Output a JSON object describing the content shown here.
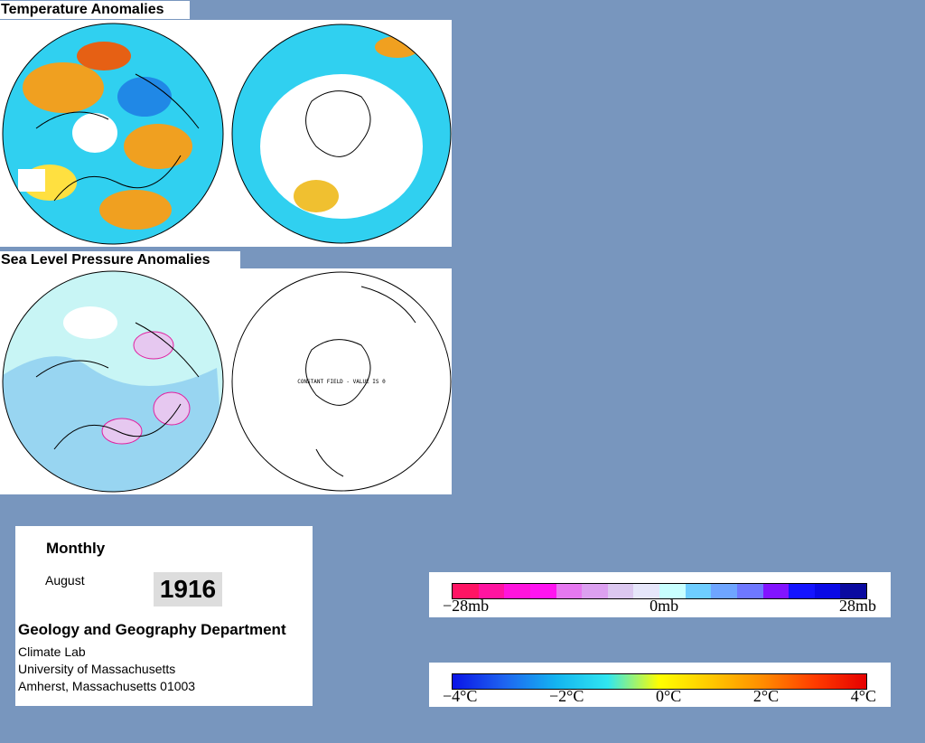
{
  "temperature": {
    "title": "Temperature Anomalies",
    "scale_labels": [
      "−4°C",
      "−2°C",
      "0°C",
      "2°C",
      "4°C"
    ],
    "scale_colors": [
      "#0a14e6",
      "#1e64f0",
      "#14b4f0",
      "#30e6f0",
      "#ffff00",
      "#ffc800",
      "#ff8c00",
      "#ff3c00",
      "#e60000"
    ]
  },
  "pressure": {
    "title": "Sea Level Pressure Anomalies",
    "south_note": "CONSTANT FIELD - VALUE IS 0",
    "scale_labels": [
      "−28mb",
      "0mb",
      "28mb"
    ],
    "scale_colors": [
      "#ff1464",
      "#ff14a0",
      "#ff14dc",
      "#ff14f0",
      "#e678f0",
      "#dca0f0",
      "#dcc8f0",
      "#e6e6fa",
      "#c8ffff",
      "#6ecdff",
      "#6ea5ff",
      "#6e78ff",
      "#8214ff",
      "#1414ff",
      "#0a0ae6",
      "#0a0aa0"
    ]
  },
  "info": {
    "period": "Monthly",
    "month": "August",
    "year": "1916",
    "department": "Geology and Geography Department",
    "address": [
      "Climate Lab",
      "University of Massachusetts",
      "Amherst, Massachusetts 01003"
    ]
  }
}
